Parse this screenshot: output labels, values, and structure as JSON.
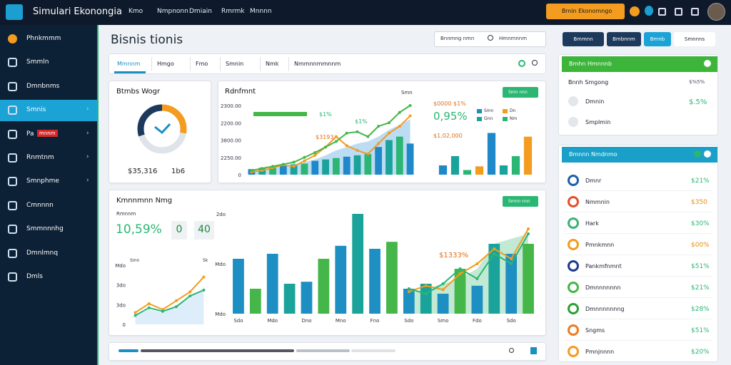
{
  "topbar": {
    "title": "Simulari Ekonongia",
    "nav": [
      "Kmo",
      "Nmpnonn",
      "Dmiain",
      "Rmrmk",
      "Mnnnn"
    ],
    "action": "Bmin Ekonomngo"
  },
  "sidebar": {
    "items": [
      "Phnkmmm",
      "Smmln",
      "Dmnbnms",
      "Smnis",
      "Pa",
      "Rnmtnm",
      "Smnphme",
      "Cmnnnn",
      "Smmnnnhg",
      "Dmnlmnq",
      "Dmls"
    ],
    "active": 3,
    "badge": "mnnm"
  },
  "header": {
    "title": "Bisnis tionis",
    "search_label": "Bnnmng nmn",
    "search_placeholder": "Hmnmnnm"
  },
  "tabs": {
    "items": [
      "Mmnnm",
      "Hmgo",
      "Fmo",
      "Smnin",
      "Nmk",
      "Nmmnnmmnnm"
    ],
    "active": 0
  },
  "chart_data": [
    {
      "type": "donut",
      "title": "Btmbs Wogr",
      "amount": "$35,316",
      "code": "1b6",
      "values": [
        28,
        42,
        30
      ],
      "colors": [
        "#f39c1f",
        "#dfe4ea",
        "#1d3a5c"
      ]
    },
    {
      "type": "combo",
      "title": "Rdnfmnt",
      "subtitle": "Smn",
      "y_labels": [
        "2300.00",
        "2200.00",
        "3800.00",
        "2250.00",
        "0"
      ],
      "ylim": [
        0,
        100
      ],
      "series": [
        {
          "kind": "area",
          "color": "#9fcdf0",
          "values": [
            5,
            7,
            10,
            12,
            15,
            18,
            22,
            28,
            35,
            40,
            45,
            48,
            55,
            65,
            72,
            80
          ]
        },
        {
          "kind": "bar",
          "colors": [
            "#1e88c8",
            "#1aa39a",
            "#2bb673"
          ],
          "values": [
            8,
            10,
            12,
            14,
            15,
            16,
            20,
            22,
            24,
            26,
            28,
            30,
            40,
            50,
            55,
            45
          ]
        },
        {
          "kind": "line",
          "color": "#f39c1f",
          "values": [
            4,
            6,
            10,
            14,
            12,
            20,
            28,
            40,
            55,
            42,
            35,
            30,
            45,
            60,
            70,
            85
          ]
        },
        {
          "kind": "line",
          "color": "#45b649",
          "values": [
            6,
            9,
            12,
            15,
            18,
            25,
            32,
            40,
            48,
            60,
            62,
            55,
            70,
            75,
            90,
            100
          ]
        }
      ],
      "annotations": [
        "$1%",
        "$1%",
        "$3193"
      ],
      "stats": [
        "$0000 $1%",
        "0,95%",
        "$1,02,000"
      ],
      "legend": [
        "Smn",
        "Dn",
        "Gnn",
        "Nm"
      ],
      "button": "Smn nnn"
    },
    {
      "type": "bar",
      "ylim": [
        0,
        100
      ],
      "colors": [
        "#1e88c8",
        "#1aa39a",
        "#2bb673",
        "#f39c1f"
      ],
      "values": [
        20,
        40,
        10,
        18,
        90,
        20,
        40,
        82
      ]
    },
    {
      "type": "combo",
      "title": "Kmnnmnn Nmg",
      "y_labels": [
        "2do",
        "Mdo",
        "Mdo"
      ],
      "ylim": [
        0,
        100
      ],
      "categories": [
        "Sdo",
        null,
        "Mdo",
        null,
        "Dno",
        null,
        "Mno",
        null,
        "Fno",
        null,
        "Sdo",
        null,
        "Smo",
        null,
        "Fdo",
        null,
        "Sdo",
        null
      ],
      "series": [
        {
          "kind": "area",
          "color": "#a8e0c0",
          "values": [
            null,
            null,
            null,
            null,
            null,
            null,
            null,
            null,
            null,
            null,
            20,
            25,
            30,
            35,
            45,
            70,
            75,
            80
          ]
        },
        {
          "kind": "bar",
          "colors": [
            "#1e8fc2",
            "#45b649",
            "#1e8fc2",
            "#1aa39a"
          ],
          "values": [
            55,
            25,
            60,
            30,
            32,
            55,
            68,
            100,
            65,
            72,
            25,
            30,
            20,
            45,
            28,
            70,
            60,
            70
          ]
        },
        {
          "kind": "line",
          "color": "#f39c1f",
          "values": [
            null,
            null,
            null,
            null,
            null,
            null,
            null,
            null,
            null,
            null,
            22,
            28,
            24,
            40,
            50,
            65,
            55,
            85
          ]
        },
        {
          "kind": "line",
          "color": "#2bb673",
          "values": [
            null,
            null,
            null,
            null,
            null,
            null,
            null,
            null,
            null,
            null,
            25,
            20,
            30,
            45,
            35,
            60,
            50,
            80
          ]
        }
      ],
      "annotation": "$1333%",
      "side_label": "Rmnnm",
      "stat": "10,59%",
      "boxes": [
        "0",
        "40"
      ],
      "mini_labels": [
        "Smn",
        "Sk"
      ],
      "button": "Smnn nnn"
    },
    {
      "type": "line",
      "y_labels": [
        "Mdo",
        "3do",
        "3do",
        "0"
      ],
      "ylim": [
        0,
        100
      ],
      "series": [
        {
          "kind": "area",
          "color": "#cfe6f7",
          "values": [
            15,
            25,
            20,
            30,
            45,
            60
          ]
        },
        {
          "kind": "line",
          "color": "#f39c1f",
          "values": [
            20,
            35,
            25,
            40,
            55,
            80
          ]
        },
        {
          "kind": "line",
          "color": "#2bb673",
          "values": [
            15,
            28,
            22,
            30,
            48,
            58
          ]
        }
      ]
    }
  ],
  "right_panel": {
    "buttons": [
      "Bmmnn",
      "Bmbnnm",
      "Bmnb",
      "Smnnns"
    ],
    "card_a": {
      "header": "Bmhn Hmnnnb",
      "rows": [
        {
          "label": "Bnnh Smgong",
          "value": "$%5%"
        },
        {
          "label": "Dmnin",
          "value": "$.5%"
        },
        {
          "label": "Smplmin"
        }
      ]
    },
    "card_b": {
      "header": "Bmnnn Nmdnmo",
      "items": [
        {
          "name": "Dmnr",
          "value": "$21%",
          "color": "#1d5fa8"
        },
        {
          "name": "Nmmnin",
          "value": "$350",
          "color": "#e0502a"
        },
        {
          "name": "Hark",
          "value": "$30%",
          "color": "#3bb273"
        },
        {
          "name": "Pmnkmnn",
          "value": "$00%",
          "color": "#f39c1f"
        },
        {
          "name": "Pankmfnmnt",
          "value": "$51%",
          "color": "#1d3a8c"
        },
        {
          "name": "Dmnnnnnnn",
          "value": "$21%",
          "color": "#45b649"
        },
        {
          "name": "Dmnnnnnnng",
          "value": "$28%",
          "color": "#2e9e3a"
        },
        {
          "name": "Sngms",
          "value": "$51%",
          "color": "#f07a1f"
        },
        {
          "name": "Pmnjnnnn",
          "value": "$20%",
          "color": "#f39c1f"
        }
      ]
    }
  }
}
